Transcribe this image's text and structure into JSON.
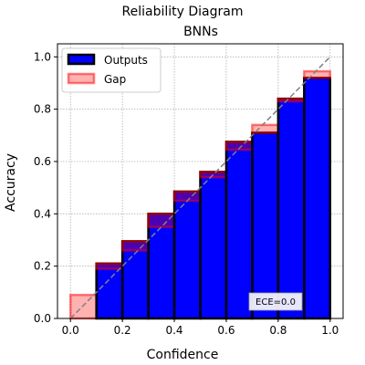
{
  "suptitle": "Reliability Diagram",
  "chart_data": {
    "type": "bar",
    "title": "BNNs",
    "xlabel": "Confidence",
    "ylabel": "Accuracy",
    "xlim": [
      -0.05,
      1.05
    ],
    "ylim": [
      0.0,
      1.05
    ],
    "xticks": [
      0.0,
      0.2,
      0.4,
      0.6,
      0.8,
      1.0
    ],
    "xtick_labels": [
      "0.0",
      "0.2",
      "0.4",
      "0.6",
      "0.8",
      "1.0"
    ],
    "yticks": [
      0.0,
      0.2,
      0.4,
      0.6,
      0.8,
      1.0
    ],
    "ytick_labels": [
      "0.0",
      "0.2",
      "0.4",
      "0.6",
      "0.8",
      "1.0"
    ],
    "grid": true,
    "bins": [
      {
        "x_start": 0.0,
        "x_end": 0.1,
        "accuracy": 0.0,
        "confidence": 0.09
      },
      {
        "x_start": 0.1,
        "x_end": 0.2,
        "accuracy": 0.21,
        "confidence": 0.19
      },
      {
        "x_start": 0.2,
        "x_end": 0.3,
        "accuracy": 0.295,
        "confidence": 0.26
      },
      {
        "x_start": 0.3,
        "x_end": 0.4,
        "accuracy": 0.4,
        "confidence": 0.35
      },
      {
        "x_start": 0.4,
        "x_end": 0.5,
        "accuracy": 0.485,
        "confidence": 0.45
      },
      {
        "x_start": 0.5,
        "x_end": 0.6,
        "accuracy": 0.56,
        "confidence": 0.54
      },
      {
        "x_start": 0.6,
        "x_end": 0.7,
        "accuracy": 0.675,
        "confidence": 0.645
      },
      {
        "x_start": 0.7,
        "x_end": 0.8,
        "accuracy": 0.71,
        "confidence": 0.74
      },
      {
        "x_start": 0.8,
        "x_end": 0.9,
        "accuracy": 0.84,
        "confidence": 0.83
      },
      {
        "x_start": 0.9,
        "x_end": 1.0,
        "accuracy": 0.92,
        "confidence": 0.945
      }
    ],
    "diagonal": {
      "x": [
        0,
        1
      ],
      "y": [
        0,
        1
      ]
    },
    "legend": {
      "placement": "top-left",
      "entries": [
        "Outputs",
        "Gap"
      ]
    },
    "annotation": "ECE=0.0",
    "colors": {
      "outputs_fill": "#0000ff",
      "outputs_edge": "#000000",
      "gap_fill": "#ff0000",
      "gap_edge": "#ff0000",
      "diagonal": "#808080",
      "grid": "#b0b0b0"
    }
  }
}
